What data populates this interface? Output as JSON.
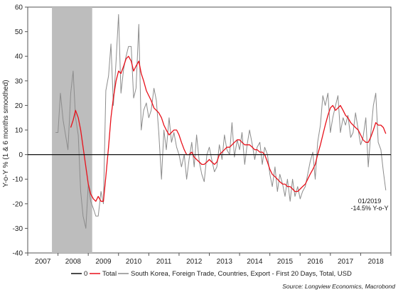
{
  "chart_data": {
    "type": "line",
    "ylabel": "Y-o-Y % (1 & 6 months smoothed)",
    "ylim": [
      -40,
      60
    ],
    "yticks": [
      -40,
      -30,
      -20,
      -10,
      0,
      10,
      20,
      30,
      40,
      50,
      60
    ],
    "xlim": [
      2007.0,
      2019.0
    ],
    "xtick_labels": [
      {
        "year": 2007,
        "label": "2007"
      },
      {
        "year": 2008,
        "label": "2008"
      },
      {
        "year": 2009,
        "label": "2009"
      },
      {
        "year": 2010,
        "label": "2010"
      },
      {
        "year": 2011,
        "label": "2011"
      },
      {
        "year": 2012,
        "label": "2012"
      },
      {
        "year": 2013,
        "label": "2013"
      },
      {
        "year": 2014,
        "label": "2014"
      },
      {
        "year": 2015,
        "label": "2015"
      },
      {
        "year": 2016,
        "label": "2016"
      },
      {
        "year": 2017,
        "label": "2017"
      },
      {
        "year": 2018,
        "label": "2018"
      }
    ],
    "shaded_period": [
      2007.8,
      2009.13
    ],
    "shade_color": "#bdbdbd",
    "zero_line": {
      "name": "0",
      "value": 0,
      "color": "#111111"
    },
    "series": [
      {
        "name": "South Korea, Foreign Trade, Countries, Export - First 20 Days, Total, USD",
        "color": "#8c8c8c",
        "points": [
          [
            2007.92,
            9
          ],
          [
            2008.0,
            9
          ],
          [
            2008.08,
            25
          ],
          [
            2008.17,
            14
          ],
          [
            2008.25,
            8
          ],
          [
            2008.33,
            2
          ],
          [
            2008.42,
            25
          ],
          [
            2008.5,
            34
          ],
          [
            2008.58,
            15
          ],
          [
            2008.67,
            8
          ],
          [
            2008.75,
            -15
          ],
          [
            2008.83,
            -25
          ],
          [
            2008.92,
            -30
          ],
          [
            2009.0,
            -12
          ],
          [
            2009.08,
            -19
          ],
          [
            2009.17,
            -22
          ],
          [
            2009.25,
            -25
          ],
          [
            2009.33,
            -25
          ],
          [
            2009.42,
            -15
          ],
          [
            2009.5,
            -20
          ],
          [
            2009.58,
            26
          ],
          [
            2009.67,
            32
          ],
          [
            2009.75,
            45
          ],
          [
            2009.83,
            20
          ],
          [
            2009.92,
            38
          ],
          [
            2010.0,
            57
          ],
          [
            2010.08,
            25
          ],
          [
            2010.17,
            35
          ],
          [
            2010.25,
            40
          ],
          [
            2010.33,
            44
          ],
          [
            2010.42,
            44
          ],
          [
            2010.5,
            23
          ],
          [
            2010.58,
            27
          ],
          [
            2010.67,
            53
          ],
          [
            2010.75,
            10
          ],
          [
            2010.83,
            18
          ],
          [
            2010.92,
            21
          ],
          [
            2011.0,
            15
          ],
          [
            2011.08,
            18
          ],
          [
            2011.17,
            27
          ],
          [
            2011.25,
            22
          ],
          [
            2011.33,
            9
          ],
          [
            2011.42,
            -10
          ],
          [
            2011.5,
            10
          ],
          [
            2011.58,
            2
          ],
          [
            2011.67,
            15
          ],
          [
            2011.75,
            5
          ],
          [
            2011.83,
            9
          ],
          [
            2011.92,
            3
          ],
          [
            2012.0,
            0
          ],
          [
            2012.08,
            -5
          ],
          [
            2012.17,
            0
          ],
          [
            2012.25,
            -10
          ],
          [
            2012.33,
            -2
          ],
          [
            2012.42,
            5
          ],
          [
            2012.5,
            -5
          ],
          [
            2012.58,
            8
          ],
          [
            2012.67,
            -3
          ],
          [
            2012.75,
            -8
          ],
          [
            2012.83,
            -11
          ],
          [
            2012.92,
            0
          ],
          [
            2013.0,
            3
          ],
          [
            2013.08,
            -2
          ],
          [
            2013.17,
            -7
          ],
          [
            2013.25,
            -5
          ],
          [
            2013.33,
            4
          ],
          [
            2013.42,
            -2
          ],
          [
            2013.5,
            8
          ],
          [
            2013.58,
            2
          ],
          [
            2013.67,
            0
          ],
          [
            2013.75,
            13
          ],
          [
            2013.83,
            -1
          ],
          [
            2013.92,
            6
          ],
          [
            2014.0,
            2
          ],
          [
            2014.08,
            9
          ],
          [
            2014.17,
            -4
          ],
          [
            2014.25,
            4
          ],
          [
            2014.33,
            10
          ],
          [
            2014.42,
            4
          ],
          [
            2014.5,
            -2
          ],
          [
            2014.58,
            3
          ],
          [
            2014.67,
            5
          ],
          [
            2014.75,
            -4
          ],
          [
            2014.83,
            3
          ],
          [
            2014.92,
            0
          ],
          [
            2015.0,
            -8
          ],
          [
            2015.08,
            -13
          ],
          [
            2015.17,
            -5
          ],
          [
            2015.25,
            -15
          ],
          [
            2015.33,
            -8
          ],
          [
            2015.42,
            -12
          ],
          [
            2015.5,
            -17
          ],
          [
            2015.58,
            -10
          ],
          [
            2015.67,
            -19
          ],
          [
            2015.75,
            -10
          ],
          [
            2015.83,
            -17
          ],
          [
            2015.92,
            -13
          ],
          [
            2016.0,
            -18
          ],
          [
            2016.08,
            -15
          ],
          [
            2016.17,
            -13
          ],
          [
            2016.25,
            -8
          ],
          [
            2016.33,
            -3
          ],
          [
            2016.42,
            1
          ],
          [
            2016.5,
            -10
          ],
          [
            2016.58,
            5
          ],
          [
            2016.67,
            12
          ],
          [
            2016.75,
            24
          ],
          [
            2016.83,
            20
          ],
          [
            2016.92,
            25
          ],
          [
            2017.0,
            9
          ],
          [
            2017.08,
            15
          ],
          [
            2017.17,
            20
          ],
          [
            2017.25,
            24
          ],
          [
            2017.33,
            9
          ],
          [
            2017.42,
            15
          ],
          [
            2017.5,
            12
          ],
          [
            2017.58,
            16
          ],
          [
            2017.67,
            7
          ],
          [
            2017.75,
            9
          ],
          [
            2017.83,
            17
          ],
          [
            2017.92,
            10
          ],
          [
            2018.0,
            4
          ],
          [
            2018.08,
            7
          ],
          [
            2018.17,
            15
          ],
          [
            2018.25,
            -5
          ],
          [
            2018.33,
            8
          ],
          [
            2018.42,
            20
          ],
          [
            2018.5,
            25
          ],
          [
            2018.58,
            5
          ],
          [
            2018.67,
            2
          ],
          [
            2018.75,
            -7
          ],
          [
            2018.83,
            -14.5
          ]
        ]
      },
      {
        "name": "Total",
        "color": "#e8101a",
        "points": [
          [
            2008.42,
            11
          ],
          [
            2008.5,
            14
          ],
          [
            2008.58,
            18
          ],
          [
            2008.67,
            15
          ],
          [
            2008.75,
            10
          ],
          [
            2008.83,
            3
          ],
          [
            2008.92,
            -5
          ],
          [
            2009.0,
            -12
          ],
          [
            2009.08,
            -16
          ],
          [
            2009.17,
            -18
          ],
          [
            2009.25,
            -19
          ],
          [
            2009.33,
            -17
          ],
          [
            2009.42,
            -19
          ],
          [
            2009.5,
            -19
          ],
          [
            2009.58,
            -9
          ],
          [
            2009.67,
            3
          ],
          [
            2009.75,
            15
          ],
          [
            2009.83,
            23
          ],
          [
            2009.92,
            30
          ],
          [
            2010.0,
            34
          ],
          [
            2010.08,
            33
          ],
          [
            2010.17,
            36
          ],
          [
            2010.25,
            39
          ],
          [
            2010.33,
            40
          ],
          [
            2010.42,
            38
          ],
          [
            2010.5,
            34
          ],
          [
            2010.58,
            36
          ],
          [
            2010.67,
            38
          ],
          [
            2010.75,
            33
          ],
          [
            2010.83,
            30
          ],
          [
            2010.92,
            26
          ],
          [
            2011.0,
            24
          ],
          [
            2011.08,
            22
          ],
          [
            2011.17,
            19
          ],
          [
            2011.25,
            18
          ],
          [
            2011.33,
            17
          ],
          [
            2011.42,
            15
          ],
          [
            2011.5,
            12
          ],
          [
            2011.58,
            10
          ],
          [
            2011.67,
            8
          ],
          [
            2011.75,
            9
          ],
          [
            2011.83,
            10
          ],
          [
            2011.92,
            10
          ],
          [
            2012.0,
            8
          ],
          [
            2012.08,
            5
          ],
          [
            2012.17,
            2
          ],
          [
            2012.25,
            0
          ],
          [
            2012.33,
            0
          ],
          [
            2012.42,
            1
          ],
          [
            2012.5,
            -1
          ],
          [
            2012.58,
            -2
          ],
          [
            2012.67,
            -3
          ],
          [
            2012.75,
            -4
          ],
          [
            2012.83,
            -4
          ],
          [
            2012.92,
            -3
          ],
          [
            2013.0,
            -2
          ],
          [
            2013.08,
            -3
          ],
          [
            2013.17,
            -4
          ],
          [
            2013.25,
            -3
          ],
          [
            2013.33,
            0
          ],
          [
            2013.42,
            1
          ],
          [
            2013.5,
            2
          ],
          [
            2013.58,
            3
          ],
          [
            2013.67,
            3
          ],
          [
            2013.75,
            4
          ],
          [
            2013.83,
            5
          ],
          [
            2013.92,
            6
          ],
          [
            2014.0,
            6
          ],
          [
            2014.08,
            5
          ],
          [
            2014.17,
            4
          ],
          [
            2014.25,
            4
          ],
          [
            2014.33,
            4
          ],
          [
            2014.42,
            3
          ],
          [
            2014.5,
            2
          ],
          [
            2014.58,
            2
          ],
          [
            2014.67,
            1
          ],
          [
            2014.75,
            1
          ],
          [
            2014.83,
            0
          ],
          [
            2014.92,
            -3
          ],
          [
            2015.0,
            -6
          ],
          [
            2015.08,
            -8
          ],
          [
            2015.17,
            -9
          ],
          [
            2015.25,
            -10
          ],
          [
            2015.33,
            -11
          ],
          [
            2015.42,
            -12
          ],
          [
            2015.5,
            -12
          ],
          [
            2015.58,
            -13
          ],
          [
            2015.67,
            -13
          ],
          [
            2015.75,
            -14
          ],
          [
            2015.83,
            -15
          ],
          [
            2015.92,
            -15
          ],
          [
            2016.0,
            -14
          ],
          [
            2016.08,
            -13
          ],
          [
            2016.17,
            -12
          ],
          [
            2016.25,
            -10
          ],
          [
            2016.33,
            -8
          ],
          [
            2016.42,
            -6
          ],
          [
            2016.5,
            -4
          ],
          [
            2016.58,
            0
          ],
          [
            2016.67,
            4
          ],
          [
            2016.75,
            8
          ],
          [
            2016.83,
            12
          ],
          [
            2016.92,
            16
          ],
          [
            2017.0,
            19
          ],
          [
            2017.08,
            20
          ],
          [
            2017.17,
            18
          ],
          [
            2017.25,
            19
          ],
          [
            2017.33,
            20
          ],
          [
            2017.42,
            18
          ],
          [
            2017.5,
            16
          ],
          [
            2017.58,
            15
          ],
          [
            2017.67,
            13
          ],
          [
            2017.75,
            12
          ],
          [
            2017.83,
            11
          ],
          [
            2017.92,
            10
          ],
          [
            2018.0,
            8
          ],
          [
            2018.08,
            6
          ],
          [
            2018.17,
            5
          ],
          [
            2018.25,
            5
          ],
          [
            2018.33,
            7
          ],
          [
            2018.42,
            10
          ],
          [
            2018.5,
            13
          ],
          [
            2018.58,
            12
          ],
          [
            2018.67,
            12
          ],
          [
            2018.75,
            11
          ],
          [
            2018.83,
            8.5
          ]
        ]
      }
    ],
    "annotation": {
      "line1": "01/2019",
      "line2": "-14.5% Y-o-Y"
    },
    "legend_position": "bottom",
    "source": "Source: Longview Economics, Macrobond"
  }
}
